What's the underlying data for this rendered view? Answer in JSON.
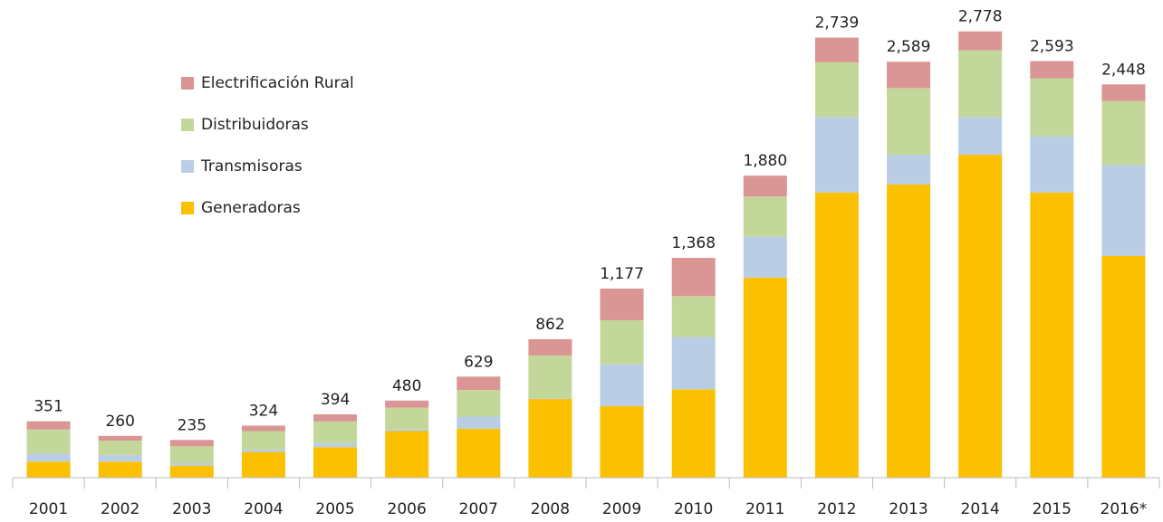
{
  "chart_data": {
    "type": "stacked-bar",
    "categories": [
      "2001",
      "2002",
      "2003",
      "2004",
      "2005",
      "2006",
      "2007",
      "2008",
      "2009",
      "2010",
      "2011",
      "2012",
      "2013",
      "2014",
      "2015",
      "2016*"
    ],
    "series": [
      {
        "name": "Generadoras",
        "color": "#fbc000",
        "values": [
          100,
          100,
          75,
          160,
          190,
          290,
          305,
          490,
          445,
          550,
          1245,
          1775,
          1825,
          2010,
          1775,
          1380
        ]
      },
      {
        "name": "Transmisoras",
        "color": "#b9cde5",
        "values": [
          50,
          40,
          15,
          15,
          25,
          10,
          75,
          5,
          260,
          325,
          255,
          470,
          185,
          235,
          350,
          565
        ]
      },
      {
        "name": "Distribuidoras",
        "color": "#c4d79b",
        "values": [
          150,
          90,
          105,
          115,
          135,
          135,
          165,
          265,
          275,
          255,
          250,
          340,
          415,
          415,
          360,
          400
        ]
      },
      {
        "name": "Electrificación Rural",
        "color": "#da9694",
        "values": [
          51,
          30,
          40,
          34,
          44,
          45,
          84,
          102,
          197,
          238,
          130,
          154,
          164,
          118,
          108,
          103
        ]
      }
    ],
    "totals": [
      351,
      260,
      235,
      324,
      394,
      480,
      629,
      862,
      1177,
      1368,
      1880,
      2739,
      2589,
      2778,
      2593,
      2448
    ],
    "value_labels": [
      "351",
      "260",
      "235",
      "324",
      "394",
      "480",
      "629",
      "862",
      "1,177",
      "1,368",
      "1,880",
      "2,739",
      "2,589",
      "2,778",
      "2,593",
      "2,448"
    ],
    "ylim": [
      0,
      2900
    ]
  }
}
